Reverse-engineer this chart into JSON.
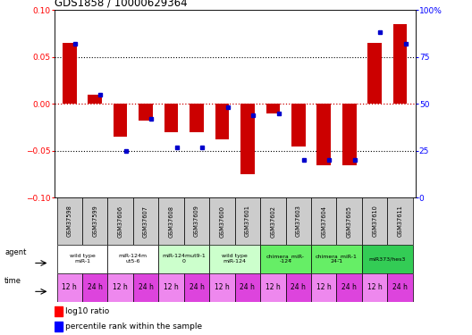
{
  "title": "GDS1858 / 10000629364",
  "samples": [
    "GSM37598",
    "GSM37599",
    "GSM37606",
    "GSM37607",
    "GSM37608",
    "GSM37609",
    "GSM37600",
    "GSM37601",
    "GSM37602",
    "GSM37603",
    "GSM37604",
    "GSM37605",
    "GSM37610",
    "GSM37611"
  ],
  "log10_ratio": [
    0.065,
    0.01,
    -0.035,
    -0.018,
    -0.03,
    -0.03,
    -0.038,
    -0.075,
    -0.01,
    -0.045,
    -0.065,
    -0.065,
    0.065,
    0.085
  ],
  "percentile_rank": [
    82,
    55,
    25,
    42,
    27,
    27,
    48,
    44,
    45,
    20,
    20,
    20,
    88,
    82
  ],
  "ylim_left": [
    -0.1,
    0.1
  ],
  "ylim_right": [
    0,
    100
  ],
  "yticks_left": [
    -0.1,
    -0.05,
    0.0,
    0.05,
    0.1
  ],
  "yticks_right": [
    0,
    25,
    50,
    75,
    100
  ],
  "agent_groups": [
    {
      "label": "wild type\nmiR-1",
      "cols": [
        0,
        1
      ],
      "color": "#ffffff"
    },
    {
      "label": "miR-124m\nut5-6",
      "cols": [
        2,
        3
      ],
      "color": "#ffffff"
    },
    {
      "label": "miR-124mut9-1\n0",
      "cols": [
        4,
        5
      ],
      "color": "#ccffcc"
    },
    {
      "label": "wild type\nmiR-124",
      "cols": [
        6,
        7
      ],
      "color": "#ccffcc"
    },
    {
      "label": "chimera_miR-\n-124",
      "cols": [
        8,
        9
      ],
      "color": "#66ee66"
    },
    {
      "label": "chimera_miR-1\n24-1",
      "cols": [
        10,
        11
      ],
      "color": "#66ee66"
    },
    {
      "label": "miR373/hes3",
      "cols": [
        12,
        13
      ],
      "color": "#33cc55"
    }
  ],
  "time_labels": [
    "12 h",
    "24 h",
    "12 h",
    "24 h",
    "12 h",
    "24 h",
    "12 h",
    "24 h",
    "12 h",
    "24 h",
    "12 h",
    "24 h",
    "12 h",
    "24 h"
  ],
  "time_colors": [
    "#ee88ee",
    "#dd44dd",
    "#ee88ee",
    "#dd44dd",
    "#ee88ee",
    "#dd44dd",
    "#ee88ee",
    "#dd44dd",
    "#ee88ee",
    "#dd44dd",
    "#ee88ee",
    "#dd44dd",
    "#ee88ee",
    "#dd44dd"
  ],
  "sample_bg_color": "#cccccc",
  "bar_color": "#cc0000",
  "dot_color": "#0000cc",
  "bg_color": "#ffffff"
}
